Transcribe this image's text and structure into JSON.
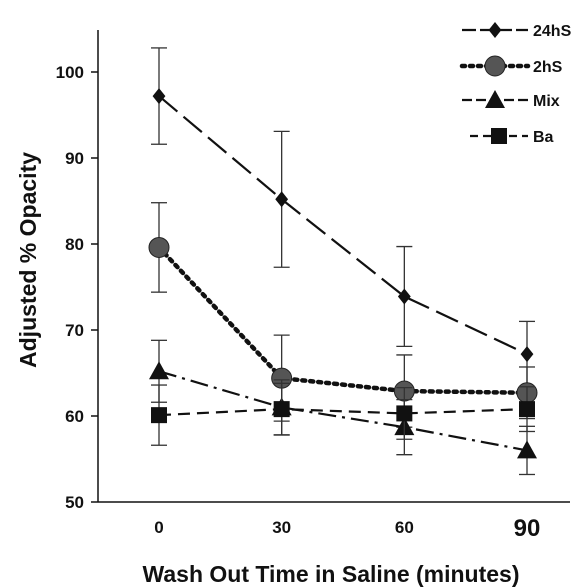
{
  "chart_data": {
    "type": "line",
    "title": "",
    "xlabel": "Wash Out Time in Saline (minutes)",
    "ylabel": "Adjusted % Opacity",
    "x": [
      0,
      30,
      60,
      90
    ],
    "x_tick_labels": [
      "0",
      "30",
      "60",
      "90"
    ],
    "y_ticks": [
      50,
      60,
      70,
      80,
      90,
      100
    ],
    "ylim": [
      50,
      105
    ],
    "grid": false,
    "legend_position": "top-right",
    "series": [
      {
        "name": "24hS",
        "marker": "diamond",
        "line_style": "long-dash",
        "values": [
          97.2,
          85.2,
          73.9,
          67.2
        ],
        "errors": [
          5.6,
          7.9,
          5.8,
          3.8
        ]
      },
      {
        "name": "2hS",
        "marker": "circle",
        "line_style": "dotted",
        "values": [
          79.6,
          64.4,
          62.9,
          62.7
        ],
        "errors": [
          5.2,
          5.0,
          4.2,
          3.0
        ]
      },
      {
        "name": "Mix",
        "marker": "triangle",
        "line_style": "dash-dot",
        "values": [
          65.2,
          61.0,
          58.7,
          56.0
        ],
        "errors": [
          3.6,
          3.2,
          3.2,
          2.8
        ]
      },
      {
        "name": "Ba",
        "marker": "square",
        "line_style": "dashed",
        "values": [
          60.1,
          60.8,
          60.3,
          60.8
        ],
        "errors": [
          3.5,
          3.0,
          3.0,
          2.6
        ]
      }
    ]
  }
}
